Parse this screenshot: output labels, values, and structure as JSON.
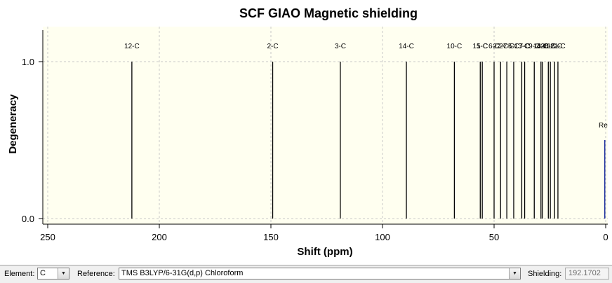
{
  "chart_data": {
    "type": "bar",
    "title": "SCF GIAO Magnetic shielding",
    "xlabel": "Shift (ppm)",
    "ylabel": "Degeneracy",
    "xlim": [
      250,
      0
    ],
    "ylim": [
      0,
      1
    ],
    "x_ticks": [
      "250",
      "200",
      "150",
      "100",
      "50",
      "0"
    ],
    "y_ticks": [
      "0.0",
      "1.0"
    ],
    "grid": true,
    "peaks": [
      {
        "label": "12-C",
        "x": 212.3,
        "y": 1.0
      },
      {
        "label": "2-C",
        "x": 149.2,
        "y": 1.0
      },
      {
        "label": "3-C",
        "x": 118.9,
        "y": 1.0
      },
      {
        "label": "14-C",
        "x": 89.3,
        "y": 1.0
      },
      {
        "label": "10-C",
        "x": 67.8,
        "y": 1.0
      },
      {
        "label": "15-C",
        "x": 56.2,
        "y": 1.0
      },
      {
        "label": "1-C",
        "x": 55.3,
        "y": 1.0
      },
      {
        "label": "6-C",
        "x": 50.0,
        "y": 1.0
      },
      {
        "label": "22-C",
        "x": 47.1,
        "y": 1.0
      },
      {
        "label": "27-C",
        "x": 44.3,
        "y": 1.0
      },
      {
        "label": "5-C",
        "x": 41.2,
        "y": 1.0
      },
      {
        "label": "13-C",
        "x": 37.6,
        "y": 1.0
      },
      {
        "label": "7-C",
        "x": 36.3,
        "y": 1.0
      },
      {
        "label": "9-C",
        "x": 32.0,
        "y": 1.0
      },
      {
        "label": "18-C",
        "x": 29.0,
        "y": 1.0
      },
      {
        "label": "4-C",
        "x": 28.4,
        "y": 1.0
      },
      {
        "label": "20-C",
        "x": 25.7,
        "y": 1.0
      },
      {
        "label": "8-C",
        "x": 24.8,
        "y": 1.0
      },
      {
        "label": "16-C",
        "x": 22.9,
        "y": 1.0
      },
      {
        "label": "21-C",
        "x": 21.4,
        "y": 1.0
      }
    ],
    "reference": {
      "label": "Re",
      "x": 0.4,
      "y": 0.5,
      "color": "#1e2f9e"
    },
    "colors": {
      "peak": "#000000",
      "plot_bg": "#fffff0",
      "grid": "#c8c8c8"
    }
  },
  "controls": {
    "element_label": "Element:",
    "element_value": "C",
    "reference_label": "Reference:",
    "reference_value": "TMS B3LYP/6-31G(d,p) Chloroform",
    "shielding_label": "Shielding:",
    "shielding_value": "192.1702"
  }
}
